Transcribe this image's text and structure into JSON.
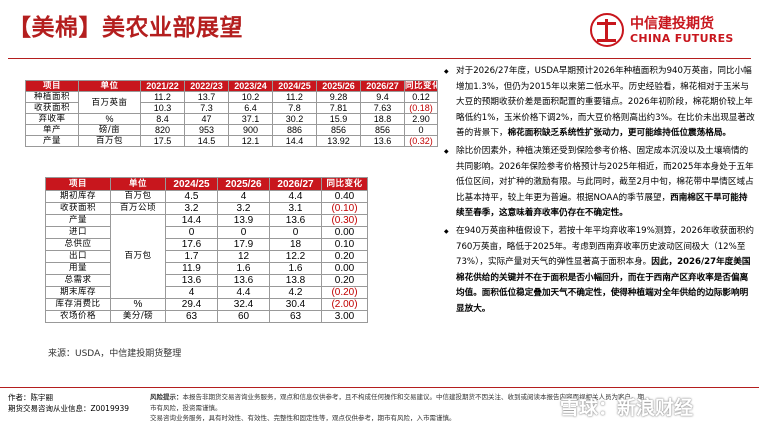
{
  "header": {
    "title": "【美棉】美农业部展望",
    "logo_cn": "中信建投期货",
    "logo_en": "CHINA FUTURES"
  },
  "table1": {
    "columns": [
      "项目",
      "单位",
      "2021/22",
      "2022/23",
      "2023/24",
      "2024/25",
      "2025/26",
      "2026/27",
      "同比变化"
    ],
    "rows": [
      {
        "item": "种植面积",
        "unit": "百万英亩",
        "v": [
          "11.2",
          "13.7",
          "10.2",
          "11.2",
          "9.28",
          "9.4"
        ],
        "chg": "0.12"
      },
      {
        "item": "收获面积",
        "unit": "",
        "v": [
          "10.3",
          "7.3",
          "6.4",
          "7.8",
          "7.81",
          "7.63"
        ],
        "chg": "(0.18)"
      },
      {
        "item": "弃收率",
        "unit": "%",
        "v": [
          "8.4",
          "47",
          "37.1",
          "30.2",
          "15.9",
          "18.8"
        ],
        "chg": "2.90"
      },
      {
        "item": "单产",
        "unit": "磅/亩",
        "v": [
          "820",
          "953",
          "900",
          "886",
          "856",
          "856"
        ],
        "chg": "0"
      },
      {
        "item": "产量",
        "unit": "百万包",
        "v": [
          "17.5",
          "14.5",
          "12.1",
          "14.4",
          "13.92",
          "13.6"
        ],
        "chg": "(0.32)"
      }
    ]
  },
  "table2": {
    "columns": [
      "项目",
      "单位",
      "2024/25",
      "2025/26",
      "2026/27",
      "同比变化"
    ],
    "rows": [
      {
        "item": "期初库存",
        "v": [
          "4.5",
          "4",
          "4.4"
        ],
        "chg": "0.40"
      },
      {
        "item": "收获面积",
        "v": [
          "3.2",
          "3.2",
          "3.1"
        ],
        "chg": "(0.10)"
      },
      {
        "item": "产量",
        "v": [
          "14.4",
          "13.9",
          "13.6"
        ],
        "chg": "(0.30)"
      },
      {
        "item": "进口",
        "v": [
          "0",
          "0",
          "0"
        ],
        "chg": "0.00"
      },
      {
        "item": "总供应",
        "v": [
          "17.6",
          "17.9",
          "18"
        ],
        "chg": "0.10"
      },
      {
        "item": "出口",
        "v": [
          "1.7",
          "12",
          "12.2"
        ],
        "chg": "0.20"
      },
      {
        "item": "用量",
        "v": [
          "11.9",
          "1.6",
          "1.6"
        ],
        "chg": "0.00"
      },
      {
        "item": "总需求",
        "v": [
          "13.6",
          "13.6",
          "13.8"
        ],
        "chg": "0.20"
      },
      {
        "item": "期末库存",
        "v": [
          "4",
          "4.4",
          "4.2"
        ],
        "chg": "(0.20)"
      },
      {
        "item": "库存消费比",
        "v": [
          "29.4",
          "32.4",
          "30.4"
        ],
        "chg": "(2.00)"
      },
      {
        "item": "农场价格",
        "v": [
          "63",
          "60",
          "63"
        ],
        "chg": "3.00"
      }
    ],
    "unit_area": "百万公顷",
    "unit_bales": "百万包",
    "unit_pct": "%",
    "unit_price": "美分/磅"
  },
  "source": "来源：USDA，中信建投期货整理",
  "bullets": [
    {
      "text": "对于2026/27年度，USDA早期预计2026年种植面积为940万英亩，同比小幅增加1.3%，但仍为2015年以来第二低水平。历史经验看，棉花相对于玉米与大豆的预期收获价差是面积配置的重要锚点。2026年初阶段，棉花期价较上年略低约1%，玉米价格下调2%，而大豆价格则高出约3%。在比价未出现显著改善的背景下，",
      "em": "棉花面积缺乏系统性扩张动力，更可能维持低位震荡格局。"
    },
    {
      "text": "除比价因素外，种植决策还受到保险参考价格、固定成本沉没以及土壤墒情的共同影响。2026年保险参考价格预计与2025年相近，而2025年本身处于五年低位区间，对扩种的激励有限。与此同时，截至2月中旬，棉花带中旱情区域占比基本持平，较上年更为普遍。根据NOAA的季节展望，",
      "em": "西南棉区干旱可能持续至春季，这意味着弃收率仍存在不确定性。"
    },
    {
      "text": "在940万英亩种植假设下，若按十年平均弃收率19%测算，2026年收获面积约760万英亩，略低于2025年。考虑到西南弃收率历史波动区间极大（12%至73%），实际产量对天气的弹性显著高于面积本身。",
      "em": "因此，2026/27年度美国棉花供给的关键并不在于面积是否小幅回升，而在于西南产区弃收率是否偏离均值。面积低位稳定叠加天气不确定性，使得种植端对全年供给的边际影响明显放大。"
    }
  ],
  "footer": {
    "author": "作者：陈宇翮",
    "license": "期货交易咨询从业信息：Z0019939",
    "risk_label": "风险提示：",
    "risk_text": "本报告非期货交易咨询业务服务，观点和信息仅供参考，且不构成任何操作和交易建议。中信建投期货不因关注、收到或阅读本报告内容而视相关人员为客户。期市有风险，投资需谨慎。",
    "risk_text2": "交易咨询业务服务，具有时效性、有效性、完整性和固定性等，观点仅供参考，期市有风险，入市需谨慎。",
    "watermark": "雪球：新浪财经"
  }
}
